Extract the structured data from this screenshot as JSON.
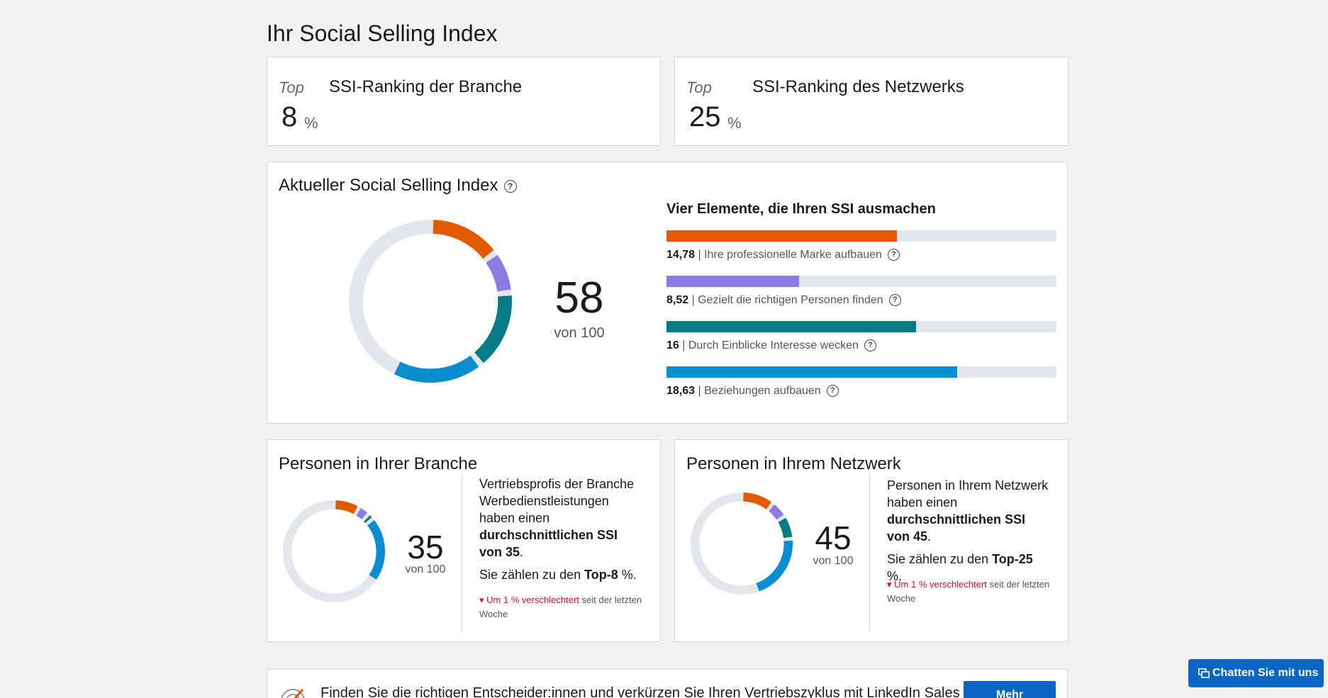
{
  "page_title": "Ihr Social Selling Index",
  "ranking": {
    "industry": {
      "top_label": "Top",
      "value": "8",
      "unit": "%",
      "label": "SSI-Ranking der Branche"
    },
    "network": {
      "top_label": "Top",
      "value": "25",
      "unit": "%",
      "label": "SSI-Ranking des Netzwerks"
    }
  },
  "ssi": {
    "heading": "Aktueller Social Selling Index",
    "score": "58",
    "out_of": "von 100",
    "elements_title": "Vier Elemente, die Ihren SSI ausmachen",
    "elements": [
      {
        "value": "14,78",
        "label": "Ihre professionelle Marke aufbauen",
        "score": 14.78,
        "max": 25,
        "color": "#e05a00"
      },
      {
        "value": "8,52",
        "label": "Gezielt die richtigen Personen finden",
        "score": 8.52,
        "max": 25,
        "color": "#8a7ce4"
      },
      {
        "value": "16",
        "label": "Durch Einblicke Interesse wecken",
        "score": 16,
        "max": 25,
        "color": "#057b84"
      },
      {
        "value": "18,63",
        "label": "Beziehungen aufbauen",
        "score": 18.63,
        "max": 25,
        "color": "#0a8ed1"
      }
    ],
    "separator": "|"
  },
  "industry_peers": {
    "heading": "Personen in Ihrer Branche",
    "score": "35",
    "out_of": "von 100",
    "segments": [
      8.3,
      3.6,
      2.0,
      21.1
    ],
    "text_1": "Vertriebsprofis der Branche Werbedienstleistungen haben einen",
    "text_bold": "durchschnittlichen SSI von 35",
    "text_end": ".",
    "rank_pre": "Sie zählen zu den",
    "rank_bold": "Top-8",
    "rank_post": "%.",
    "change_arrow": "▾",
    "change_red": "Um 1 % verschlechtert",
    "change_rest": "seit der letzten Woche"
  },
  "network_peers": {
    "heading": "Personen in Ihrem Netzwerk",
    "score": "45",
    "out_of": "von 100",
    "segments": [
      10.5,
      5.5,
      7.5,
      21.5
    ],
    "text_1": "Personen in Ihrem Netzwerk haben einen",
    "text_bold": "durchschnittlichen SSI von 45",
    "text_end": ".",
    "rank_pre": "Sie zählen zu den",
    "rank_bold": "Top-25",
    "rank_post": "%.",
    "change_arrow": "▾",
    "change_red": "Um 1 % verschlechtert",
    "change_rest": "seit der letzten Woche"
  },
  "promo": {
    "text": "Finden Sie die richtigen Entscheider:innen und verkürzen Sie Ihren Vertriebszyklus mit LinkedIn Sales",
    "button": "Mehr"
  },
  "chat": {
    "label": "Chatten Sie mit uns",
    "icon": "chat-icon"
  },
  "colors": {
    "brand": "#e05a00",
    "find": "#8a7ce4",
    "insight": "#057b84",
    "relation": "#0a8ed1",
    "track": "#e1e7ec",
    "link_blue": "#0a66c2",
    "negative": "#d11124"
  }
}
